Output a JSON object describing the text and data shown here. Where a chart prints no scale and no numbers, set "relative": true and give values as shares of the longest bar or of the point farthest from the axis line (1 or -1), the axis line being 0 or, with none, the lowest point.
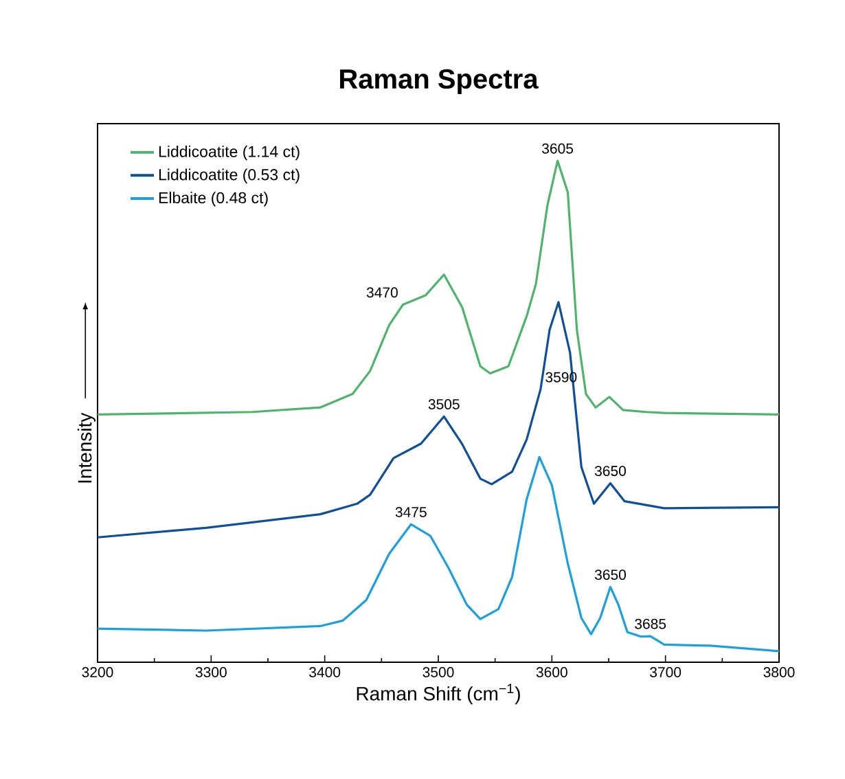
{
  "chart_data": {
    "type": "line",
    "title": "Raman Spectra",
    "xlabel": "Raman Shift (cm$^{−1}$)",
    "ylabel": "Intensity",
    "relative": true,
    "xlim": [
      3200,
      3800
    ],
    "xticks": [
      3200,
      3300,
      3400,
      3500,
      3600,
      3700,
      3800
    ],
    "legend": "top left",
    "grid": false,
    "series": [
      {
        "name": "Liddicoatite (1.14 ct)",
        "color": "#4db56a",
        "x": [
          3200,
          3336,
          3396,
          3424.5,
          3440,
          3456.7,
          3468.8,
          3489,
          3505,
          3521,
          3537,
          3545.6,
          3561.7,
          3577.8,
          3585.9,
          3596,
          3605,
          3614,
          3622,
          3630,
          3638.5,
          3650.6,
          3662.7,
          3682.8,
          3699,
          3800
        ],
        "values": [
          0.494,
          0.499,
          0.508,
          0.535,
          0.581,
          0.672,
          0.713,
          0.732,
          0.773,
          0.708,
          0.59,
          0.576,
          0.59,
          0.69,
          0.754,
          0.91,
          1.0,
          0.937,
          0.663,
          0.535,
          0.508,
          0.529,
          0.503,
          0.499,
          0.497,
          0.494
        ]
      },
      {
        "name": "Liddicoatite (0.53 ct)",
        "color": "#0d4f9c",
        "x": [
          3200,
          3295.5,
          3396,
          3428.5,
          3440,
          3460.6,
          3484.8,
          3505,
          3521,
          3537,
          3547,
          3565,
          3577.8,
          3590,
          3598,
          3605.8,
          3616,
          3620,
          3626,
          3637,
          3651.5,
          3664,
          3699,
          3800
        ],
        "values": [
          0.249,
          0.268,
          0.295,
          0.316,
          0.334,
          0.407,
          0.436,
          0.49,
          0.435,
          0.366,
          0.355,
          0.38,
          0.444,
          0.544,
          0.663,
          0.718,
          0.617,
          0.526,
          0.389,
          0.316,
          0.357,
          0.321,
          0.307,
          0.309
        ]
      },
      {
        "name": "Elbaite (0.48 ct)",
        "color": "#1aa0e0",
        "x": [
          3200,
          3295.5,
          3396,
          3416,
          3436.6,
          3456.7,
          3476,
          3493,
          3509,
          3525,
          3537,
          3553,
          3565,
          3577.8,
          3589,
          3600,
          3614,
          3626,
          3634.5,
          3642.5,
          3651.5,
          3658.5,
          3666.5,
          3678.6,
          3686.7,
          3699,
          3739,
          3800
        ],
        "values": [
          0.067,
          0.063,
          0.072,
          0.083,
          0.124,
          0.216,
          0.275,
          0.252,
          0.188,
          0.115,
          0.086,
          0.106,
          0.17,
          0.325,
          0.409,
          0.353,
          0.197,
          0.088,
          0.056,
          0.088,
          0.15,
          0.115,
          0.06,
          0.051,
          0.052,
          0.035,
          0.033,
          0.022
        ]
      }
    ],
    "annotations": [
      {
        "text": "3605",
        "x": 3605,
        "y": 1.0
      },
      {
        "text": "3470",
        "x": 3470,
        "y": 0.713
      },
      {
        "text": "3505",
        "x": 3505,
        "y": 0.49
      },
      {
        "text": "3590",
        "x": 3590,
        "y": 0.544
      },
      {
        "text": "3650",
        "x": 3651.5,
        "y": 0.357
      },
      {
        "text": "3475",
        "x": 3476,
        "y": 0.275
      },
      {
        "text": "3650",
        "x": 3651.5,
        "y": 0.15
      },
      {
        "text": "3685",
        "x": 3686.7,
        "y": 0.052
      }
    ]
  }
}
